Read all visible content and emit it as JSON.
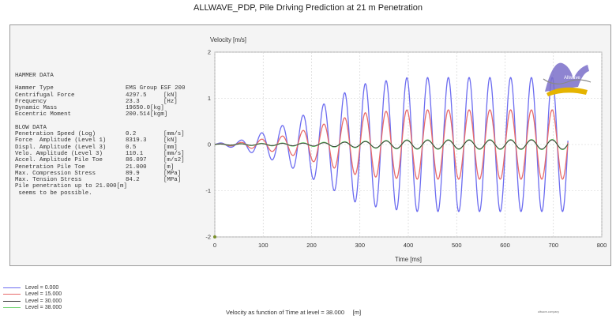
{
  "title": "ALLWAVE_PDP, Pile Driving Prediction at 21 m Penetration",
  "hammer_data": {
    "heading": "HAMMER DATA",
    "rows": [
      {
        "label": "Hammer Type",
        "value": "EMS Group ESF 200",
        "unit": ""
      },
      {
        "label": "Centrifugal Force",
        "value": "4297.5",
        "unit": "[kN]"
      },
      {
        "label": "Frequency",
        "value": "23.3",
        "unit": "[Hz]"
      },
      {
        "label": "Dynamic Mass",
        "value": "19650.0[kg]",
        "unit": ""
      },
      {
        "label": "Eccentric Moment",
        "value": "200.514[kgm]",
        "unit": ""
      }
    ]
  },
  "blow_data": {
    "heading": "BLOW DATA",
    "rows": [
      {
        "label": "Penetration Speed (Log)",
        "value": "0.2",
        "unit": "[mm/s]"
      },
      {
        "label": "Force  Amplitude (Level 1)",
        "value": "8319.3",
        "unit": "[kN]"
      },
      {
        "label": "Displ. Amplitude (Level 3)",
        "value": "0.5",
        "unit": "[mm]"
      },
      {
        "label": "Velo. Amplitude (Level 3)",
        "value": "110.1",
        "unit": "[mm/s]"
      },
      {
        "label": "Accel. Amplitude Pile Toe",
        "value": "86.097",
        "unit": "[m/s2]"
      },
      {
        "label": "Penetration Pile Toe",
        "value": "21.000",
        "unit": "[m]"
      },
      {
        "label": "Max. Compression Stress",
        "value": "89.9",
        "unit": "[MPa]"
      },
      {
        "label": "Max. Tension Stress",
        "value": "84.2",
        "unit": "[MPa]"
      }
    ],
    "note_line1": "Pile penetration up to 21.000[m]",
    "note_line2": " seems to be possible."
  },
  "legend": [
    {
      "label": "Level = 0.000",
      "color": "#6c6cf0"
    },
    {
      "label": "Level = 15.000",
      "color": "#e86a6a"
    },
    {
      "label": "Level = 30.000",
      "color": "#333333"
    },
    {
      "label": "Level = 38.000",
      "color": "#6fd36f"
    }
  ],
  "caption": "Velocity as function of Time at level = 38.000     [m]",
  "tiny_note": "allwave-company",
  "logo_text": "Allwave",
  "chart_data": {
    "type": "line",
    "title": "",
    "xlabel": "Time [ms]",
    "ylabel": "Velocity [m/s]",
    "xlim": [
      0,
      800
    ],
    "ylim": [
      -2,
      2
    ],
    "xticks": [
      0,
      100,
      200,
      300,
      400,
      500,
      600,
      700,
      800
    ],
    "yticks": [
      2,
      1,
      0,
      -1,
      -2
    ],
    "grid": true,
    "frequency_hz": 23.3,
    "t_end_ms": 730,
    "series": [
      {
        "name": "Level = 0.000",
        "color": "#6c6cf0",
        "amplitude": 1.45,
        "envelope_points_ms": [
          0,
          50,
          150,
          300,
          400,
          730
        ],
        "envelope_values": [
          0.02,
          0.08,
          0.45,
          1.3,
          1.45,
          1.45
        ]
      },
      {
        "name": "Level = 15.000",
        "color": "#e86a6a",
        "amplitude": 0.75,
        "envelope_points_ms": [
          0,
          50,
          150,
          300,
          400,
          730
        ],
        "envelope_values": [
          0.01,
          0.04,
          0.2,
          0.68,
          0.75,
          0.75
        ]
      },
      {
        "name": "Level = 30.000",
        "color": "#333333",
        "amplitude": 0.1,
        "envelope_points_ms": [
          0,
          200,
          400,
          730
        ],
        "envelope_values": [
          0.01,
          0.03,
          0.09,
          0.1
        ]
      },
      {
        "name": "Level = 38.000",
        "color": "#6fd36f",
        "amplitude": 0.11,
        "envelope_points_ms": [
          0,
          200,
          400,
          730
        ],
        "envelope_values": [
          0.01,
          0.04,
          0.1,
          0.11
        ]
      }
    ]
  }
}
